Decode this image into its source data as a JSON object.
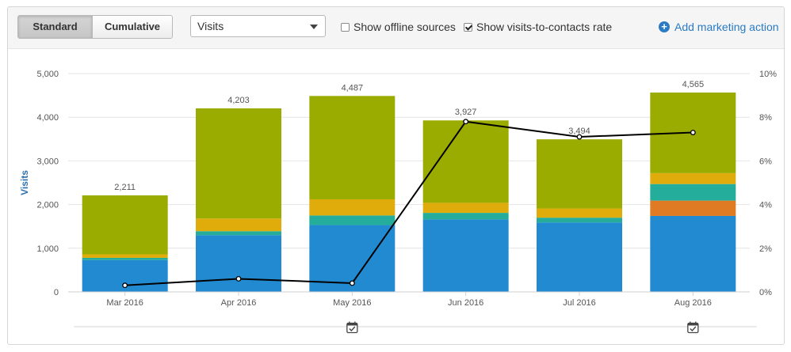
{
  "toolbar": {
    "standard_label": "Standard",
    "cumulative_label": "Cumulative",
    "metric_select": "Visits",
    "offline_label": "Show offline sources",
    "offline_checked": false,
    "rate_label": "Show visits-to-contacts rate",
    "rate_checked": true,
    "add_action_label": "Add marketing action"
  },
  "colors": {
    "blue": "#228ad0",
    "teal": "#24ad9a",
    "orange": "#e07b24",
    "yellow": "#e0ac0c",
    "olive": "#9aac00",
    "line": "#000000",
    "accent": "#2a7bc4"
  },
  "chart_data": {
    "type": "bar",
    "stacked": true,
    "categories": [
      "Mar 2016",
      "Apr 2016",
      "May 2016",
      "Jun 2016",
      "Jul 2016",
      "Aug 2016"
    ],
    "totals": [
      2211,
      4203,
      4487,
      3927,
      3494,
      4565
    ],
    "totals_labels": [
      "2,211",
      "4,203",
      "4,487",
      "3,927",
      "3,494",
      "4,565"
    ],
    "series": [
      {
        "color": "blue",
        "values": [
          730,
          1300,
          1530,
          1660,
          1590,
          1740
        ]
      },
      {
        "color": "orange",
        "values": [
          0,
          0,
          0,
          0,
          0,
          350
        ]
      },
      {
        "color": "teal",
        "values": [
          50,
          90,
          220,
          150,
          110,
          380
        ]
      },
      {
        "color": "yellow",
        "values": [
          80,
          290,
          370,
          230,
          210,
          250
        ]
      },
      {
        "color": "olive",
        "values": [
          1351,
          2523,
          2367,
          1887,
          1584,
          1845
        ]
      }
    ],
    "line": {
      "axis": "right",
      "values": [
        0.3,
        0.6,
        0.4,
        7.8,
        7.1,
        7.3
      ]
    },
    "ylabel": "Visits",
    "ylim": [
      0,
      5000
    ],
    "yticks": [
      "0",
      "1,000",
      "2,000",
      "3,000",
      "4,000",
      "5,000"
    ],
    "y2lim": [
      0,
      10
    ],
    "y2ticks": [
      "0%",
      "2%",
      "4%",
      "6%",
      "8%",
      "10%"
    ],
    "grid": true,
    "marketing_action_markers": [
      "May 2016",
      "Aug 2016"
    ]
  }
}
